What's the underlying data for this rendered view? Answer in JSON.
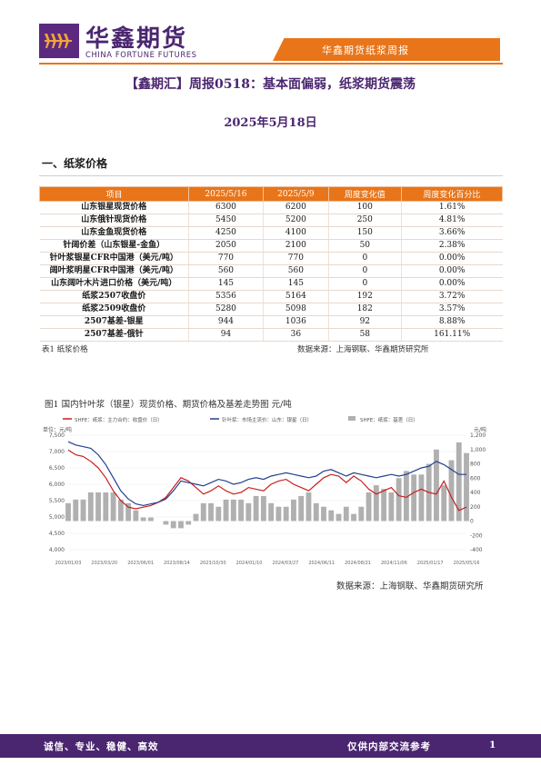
{
  "header": {
    "brand_cn": "华鑫期货",
    "brand_en": "CHINA FORTUNE FUTURES",
    "report_type": "华鑫期货纸浆周报"
  },
  "title": "【鑫期汇】周报0518：基本面偏弱，纸浆期货震荡",
  "date": "2025年5月18日",
  "section_heading": "一、纸浆价格",
  "table": {
    "headers": [
      "项目",
      "2025/5/16",
      "2025/5/9",
      "周度变化值",
      "周度变化百分比"
    ],
    "rows": [
      [
        "山东银星现货价格",
        "6300",
        "6200",
        "100",
        "1.61%"
      ],
      [
        "山东俄针现货价格",
        "5450",
        "5200",
        "250",
        "4.81%"
      ],
      [
        "山东金鱼现货价格",
        "4250",
        "4100",
        "150",
        "3.66%"
      ],
      [
        "针阔价差（山东银星-金鱼）",
        "2050",
        "2100",
        "50",
        "2.38%"
      ],
      [
        "针叶浆银星CFR中国港（美元/吨）",
        "770",
        "770",
        "0",
        "0.00%"
      ],
      [
        "阔叶浆明星CFR中国港（美元/吨）",
        "560",
        "560",
        "0",
        "0.00%"
      ],
      [
        "山东阔叶木片进口价格（美元/吨）",
        "145",
        "145",
        "0",
        "0.00%"
      ],
      [
        "纸浆2507收盘价",
        "5356",
        "5164",
        "192",
        "3.72%"
      ],
      [
        "纸浆2509收盘价",
        "5280",
        "5098",
        "182",
        "3.57%"
      ],
      [
        "2507基差-银星",
        "944",
        "1036",
        "92",
        "8.88%"
      ],
      [
        "2507基差-俄针",
        "94",
        "36",
        "58",
        "161.11%"
      ]
    ],
    "caption": "表1 纸浆价格",
    "source": "数据来源：上海钢联、华鑫期货研究所"
  },
  "figure": {
    "caption": "图1 国内针叶浆（银星）现货价格、期货价格及基差走势图 元/吨",
    "source": "数据来源：上海钢联、华鑫期货研究所"
  },
  "chart_data": {
    "type": "line",
    "title": "",
    "left_unit": "单位：元/吨",
    "right_unit": "元/吨",
    "x_ticks": [
      "2023/01/03",
      "2023/03/20",
      "2023/06/01",
      "2023/08/14",
      "2023/10/30",
      "2024/01/10",
      "2024/03/27",
      "2024/06/11",
      "2024/08/21",
      "2024/11/06",
      "2025/01/17",
      "2025/05/16"
    ],
    "y_left": {
      "ticks": [
        "7,500",
        "7,000",
        "6,500",
        "6,000",
        "5,500",
        "5,000",
        "4,500",
        "4,000"
      ],
      "range": [
        4000,
        7500
      ]
    },
    "y_right": {
      "ticks": [
        "1,200",
        "1,000",
        "800",
        "600",
        "400",
        "200",
        "0",
        "-200",
        "-400"
      ],
      "range": [
        -400,
        1200
      ]
    },
    "legend_position": "top",
    "series": [
      {
        "name": "SHFE：纸浆：主力合约：收盘价（日）",
        "axis": "left",
        "color": "#c81e1e",
        "values": [
          7050,
          6900,
          6850,
          6700,
          6500,
          6200,
          5800,
          5500,
          5300,
          5250,
          5300,
          5350,
          5450,
          5600,
          5900,
          6200,
          6100,
          5900,
          5700,
          5800,
          5950,
          5800,
          5700,
          5750,
          5900,
          5850,
          5800,
          6000,
          6100,
          6150,
          6000,
          5900,
          5800,
          6000,
          6200,
          6300,
          6250,
          6050,
          6250,
          6100,
          5850,
          5700,
          5800,
          5900,
          5650,
          5600,
          5750,
          5850,
          5750,
          5700,
          6100,
          5600,
          5200,
          5300
        ]
      },
      {
        "name": "针叶浆：市场主流价：山东：银星（日）",
        "axis": "left",
        "color": "#23408e",
        "values": [
          7300,
          7200,
          7150,
          7100,
          6900,
          6600,
          6200,
          5800,
          5550,
          5400,
          5350,
          5400,
          5450,
          5550,
          5800,
          6100,
          6050,
          6000,
          5950,
          6050,
          6150,
          6100,
          6000,
          6050,
          6150,
          6200,
          6150,
          6250,
          6300,
          6350,
          6300,
          6250,
          6200,
          6250,
          6400,
          6450,
          6350,
          6250,
          6350,
          6300,
          6250,
          6200,
          6250,
          6300,
          6250,
          6300,
          6400,
          6500,
          6550,
          6700,
          6600,
          6450,
          6300,
          6300
        ]
      },
      {
        "name": "SHFE：纸浆：基差（日）",
        "axis": "right",
        "color": "#b0b0b0",
        "values": [
          250,
          300,
          300,
          400,
          400,
          400,
          400,
          300,
          250,
          150,
          50,
          50,
          0,
          -50,
          -100,
          -100,
          -50,
          100,
          250,
          250,
          200,
          300,
          300,
          300,
          250,
          350,
          350,
          250,
          200,
          200,
          300,
          350,
          400,
          250,
          200,
          150,
          100,
          200,
          100,
          200,
          400,
          500,
          450,
          400,
          600,
          700,
          650,
          650,
          800,
          1000,
          500,
          850,
          1100,
          950
        ]
      }
    ]
  },
  "footer": {
    "left": "诚信、专业、稳健、高效",
    "right": "仅供内部交流参考",
    "page": "1"
  }
}
